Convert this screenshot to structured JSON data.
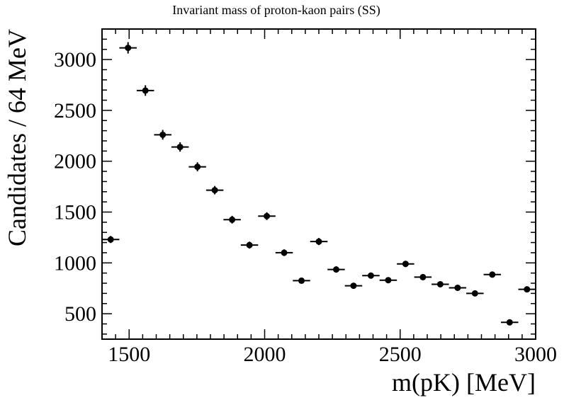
{
  "chart_data": {
    "type": "scatter",
    "title": "Invariant mass of proton-kaon pairs (SS)",
    "xlabel": "m(pK) [MeV]",
    "ylabel": "Candidates / 64 MeV",
    "xlim": [
      1400,
      3000
    ],
    "ylim": [
      250,
      3300
    ],
    "xticks": [
      1500,
      2000,
      2500,
      3000
    ],
    "yticks": [
      500,
      1000,
      1500,
      2000,
      2500,
      3000
    ],
    "bin_width": 64,
    "grid": false,
    "legend": "none",
    "marker_color": "#000000",
    "points": [
      {
        "x": 1432,
        "y": 1230,
        "err": 35
      },
      {
        "x": 1496,
        "y": 3115,
        "err": 56
      },
      {
        "x": 1560,
        "y": 2695,
        "err": 52
      },
      {
        "x": 1624,
        "y": 2260,
        "err": 48
      },
      {
        "x": 1688,
        "y": 2140,
        "err": 46
      },
      {
        "x": 1752,
        "y": 1945,
        "err": 44
      },
      {
        "x": 1816,
        "y": 1715,
        "err": 41
      },
      {
        "x": 1880,
        "y": 1425,
        "err": 38
      },
      {
        "x": 1944,
        "y": 1175,
        "err": 34
      },
      {
        "x": 2008,
        "y": 1460,
        "err": 38
      },
      {
        "x": 2072,
        "y": 1100,
        "err": 33
      },
      {
        "x": 2136,
        "y": 825,
        "err": 29
      },
      {
        "x": 2200,
        "y": 1210,
        "err": 35
      },
      {
        "x": 2264,
        "y": 935,
        "err": 31
      },
      {
        "x": 2328,
        "y": 775,
        "err": 28
      },
      {
        "x": 2392,
        "y": 875,
        "err": 30
      },
      {
        "x": 2456,
        "y": 830,
        "err": 29
      },
      {
        "x": 2520,
        "y": 990,
        "err": 31
      },
      {
        "x": 2584,
        "y": 860,
        "err": 29
      },
      {
        "x": 2648,
        "y": 790,
        "err": 28
      },
      {
        "x": 2712,
        "y": 755,
        "err": 27
      },
      {
        "x": 2776,
        "y": 700,
        "err": 26
      },
      {
        "x": 2840,
        "y": 885,
        "err": 30
      },
      {
        "x": 2904,
        "y": 415,
        "err": 20
      },
      {
        "x": 2968,
        "y": 740,
        "err": 27
      }
    ]
  }
}
